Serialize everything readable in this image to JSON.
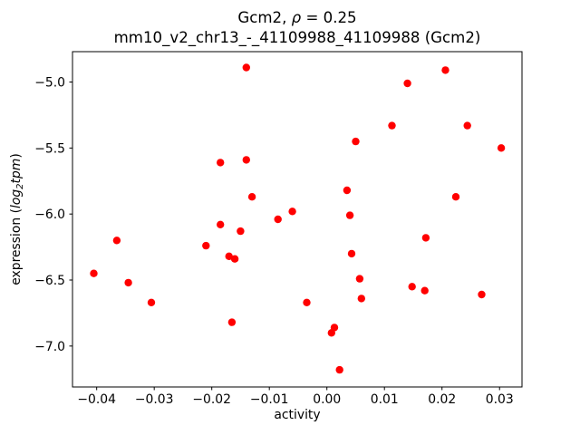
{
  "figure": {
    "title": {
      "pre": "Gcm2, ",
      "rho": "ρ",
      "post": " = 0.25"
    },
    "subtitle": "mm10_v2_chr13_-_41109988_41109988 (Gcm2)",
    "xlabel": "activity",
    "ylabel": {
      "pre": "expression (",
      "log": "log",
      "sub": "2",
      "tpm": "tpm",
      "post": ")"
    }
  },
  "chart_data": {
    "type": "scatter",
    "title": "Gcm2, ρ = 0.25",
    "subtitle": "mm10_v2_chr13_-_41109988_41109988 (Gcm2)",
    "xlabel": "activity",
    "ylabel": "expression (log₂tpm)",
    "xlim": [
      -0.0442,
      0.0339
    ],
    "ylim": [
      -7.31,
      -4.77
    ],
    "x_ticks": [
      -0.04,
      -0.03,
      -0.02,
      -0.01,
      0,
      0.01,
      0.02,
      0.03
    ],
    "y_ticks": [
      -5.0,
      -5.5,
      -6.0,
      -6.5,
      -7.0
    ],
    "x_tick_decimals": 2,
    "y_tick_decimals": 1,
    "grid": false,
    "legend": false,
    "marker_color": "#ff0000",
    "marker_radius": 4.2,
    "points": [
      [
        -0.0405,
        -6.45
      ],
      [
        -0.0365,
        -6.2
      ],
      [
        -0.0345,
        -6.52
      ],
      [
        -0.0305,
        -6.67
      ],
      [
        -0.021,
        -6.24
      ],
      [
        -0.0185,
        -6.08
      ],
      [
        -0.0185,
        -5.61
      ],
      [
        -0.017,
        -6.32
      ],
      [
        -0.016,
        -6.34
      ],
      [
        -0.0165,
        -6.82
      ],
      [
        -0.015,
        -6.13
      ],
      [
        -0.014,
        -5.59
      ],
      [
        -0.013,
        -5.87
      ],
      [
        -0.014,
        -4.89
      ],
      [
        -0.0085,
        -6.04
      ],
      [
        -0.006,
        -5.98
      ],
      [
        -0.0035,
        -6.67
      ],
      [
        0.0008,
        -6.9
      ],
      [
        0.0013,
        -6.86
      ],
      [
        0.0022,
        -7.18
      ],
      [
        0.0035,
        -5.82
      ],
      [
        0.004,
        -6.01
      ],
      [
        0.0043,
        -6.3
      ],
      [
        0.005,
        -5.45
      ],
      [
        0.0057,
        -6.49
      ],
      [
        0.006,
        -6.64
      ],
      [
        0.0113,
        -5.33
      ],
      [
        0.014,
        -5.01
      ],
      [
        0.0148,
        -6.55
      ],
      [
        0.017,
        -6.58
      ],
      [
        0.0172,
        -6.18
      ],
      [
        0.0206,
        -4.91
      ],
      [
        0.0224,
        -5.87
      ],
      [
        0.0244,
        -5.33
      ],
      [
        0.0269,
        -6.61
      ],
      [
        0.0303,
        -5.5
      ]
    ]
  }
}
